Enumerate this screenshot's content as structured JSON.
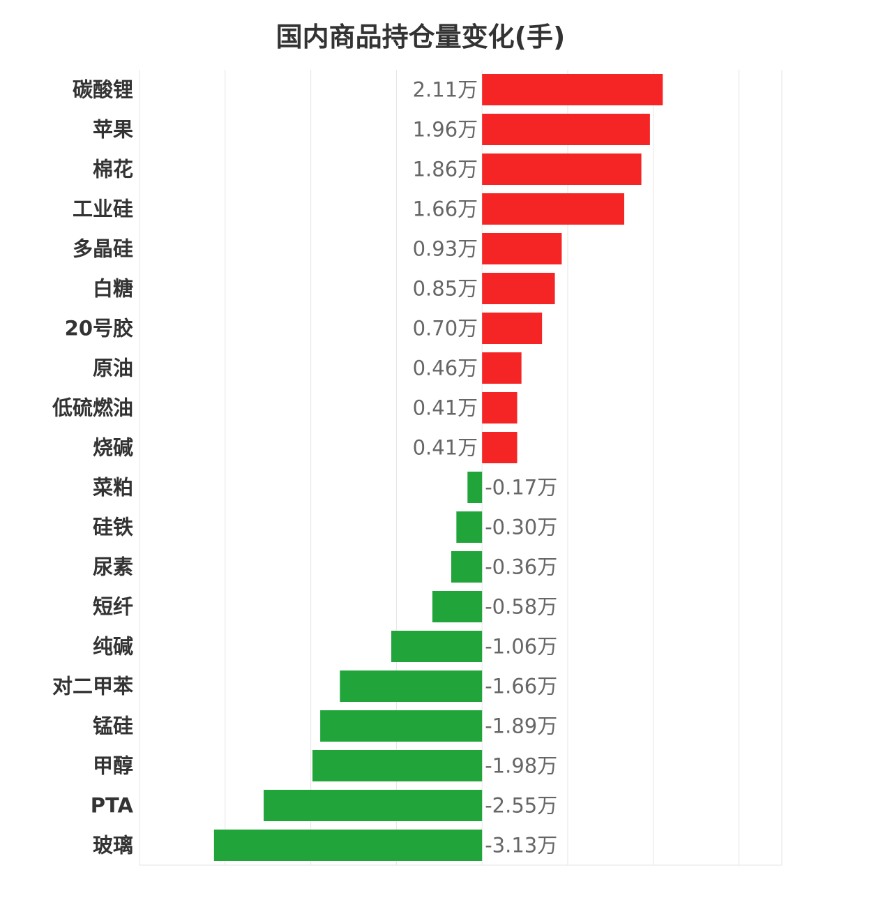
{
  "chart_data": {
    "type": "bar",
    "orientation": "horizontal",
    "title": "国内商品持仓量变化(手)",
    "unit_suffix": "万",
    "categories": [
      "碳酸锂",
      "苹果",
      "棉花",
      "工业硅",
      "多晶硅",
      "白糖",
      "20号胶",
      "原油",
      "低硫燃油",
      "烧碱",
      "菜粕",
      "硅铁",
      "尿素",
      "短纤",
      "纯碱",
      "对二甲苯",
      "锰硅",
      "甲醇",
      "PTA",
      "玻璃"
    ],
    "values": [
      2.11,
      1.96,
      1.86,
      1.66,
      0.93,
      0.85,
      0.7,
      0.46,
      0.41,
      0.41,
      -0.17,
      -0.3,
      -0.36,
      -0.58,
      -1.06,
      -1.66,
      -1.89,
      -1.98,
      -2.55,
      -3.13
    ],
    "data_labels": [
      "2.11万",
      "1.96万",
      "1.86万",
      "1.66万",
      "0.93万",
      "0.85万",
      "0.70万",
      "0.46万",
      "0.41万",
      "0.41万",
      "-0.17万",
      "-0.30万",
      "-0.36万",
      "-0.58万",
      "-1.06万",
      "-1.66万",
      "-1.89万",
      "-1.98万",
      "-2.55万",
      "-3.13万"
    ],
    "xlim": [
      -4,
      3.5
    ],
    "grid": true,
    "colors": {
      "positive": "#f52526",
      "negative": "#21a53b"
    }
  }
}
